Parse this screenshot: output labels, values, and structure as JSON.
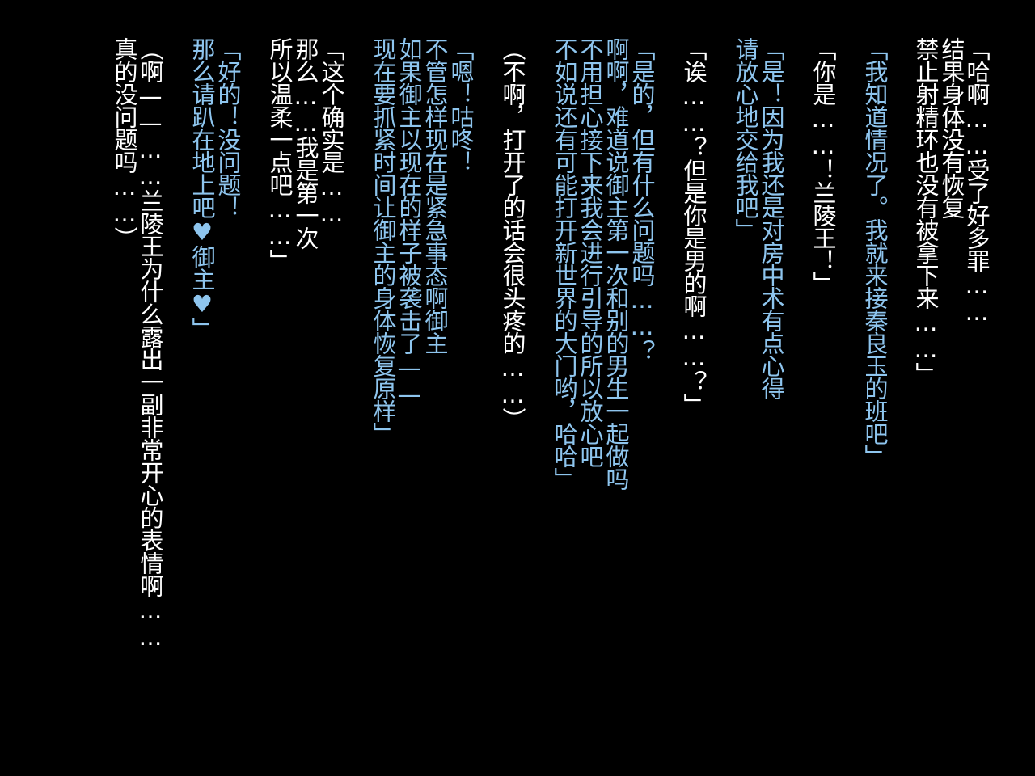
{
  "colors": {
    "background": "#000000",
    "narration": "#ffffff",
    "dialogue": "#8ec5ee"
  },
  "lines": [
    {
      "text": "「哈啊……受了好多罪……",
      "color": "white"
    },
    {
      "text": "结果身体没有恢复",
      "color": "white"
    },
    {
      "text": "禁止射精环也没有被拿下来……」",
      "color": "white"
    },
    {
      "text": "「我知道情况了。我就来接秦良玉的班吧」",
      "color": "blue"
    },
    {
      "text": "「你是……！兰陵王！」",
      "color": "white"
    },
    {
      "text": "「是！因为我还是对房中术有点心得",
      "color": "blue"
    },
    {
      "text": "请放心地交给我吧」",
      "color": "blue"
    },
    {
      "text": "「诶……？但是你是男的啊……？」",
      "color": "white"
    },
    {
      "text": "「是的，但有什么问题吗……？",
      "color": "blue"
    },
    {
      "text": "啊啊，难道说御主第一次和别的男生一起做吗",
      "color": "blue"
    },
    {
      "text": "不用担心接下来我会进行引导的所以放心吧",
      "color": "blue"
    },
    {
      "text": "不如说还有可能打开新世界的大门哟，哈哈」",
      "color": "blue"
    },
    {
      "text": "（不啊，打开了的话会很头疼的……）",
      "color": "white"
    },
    {
      "text": "「嗯！咕咚！",
      "color": "blue"
    },
    {
      "text": "不管怎样现在是紧急事态啊御主",
      "color": "blue"
    },
    {
      "text": "如果御主以现在的样子被袭击了——",
      "color": "blue"
    },
    {
      "text": "现在要抓紧时间让御主的身体恢复原样」",
      "color": "blue"
    },
    {
      "text": "「这个确实是……",
      "color": "white"
    },
    {
      "text": "那么……我是第一次",
      "color": "white"
    },
    {
      "text": "所以温柔一点吧……」",
      "color": "white"
    },
    {
      "text": "「好的！没问题！",
      "color": "blue"
    },
    {
      "text": "那么请趴在地上吧♥御主♥」",
      "color": "blue"
    },
    {
      "text": "（啊——……兰陵王为什么露出一副非常开心的表情啊……",
      "color": "white"
    },
    {
      "text": "真的没问题吗……）",
      "color": "white"
    }
  ]
}
